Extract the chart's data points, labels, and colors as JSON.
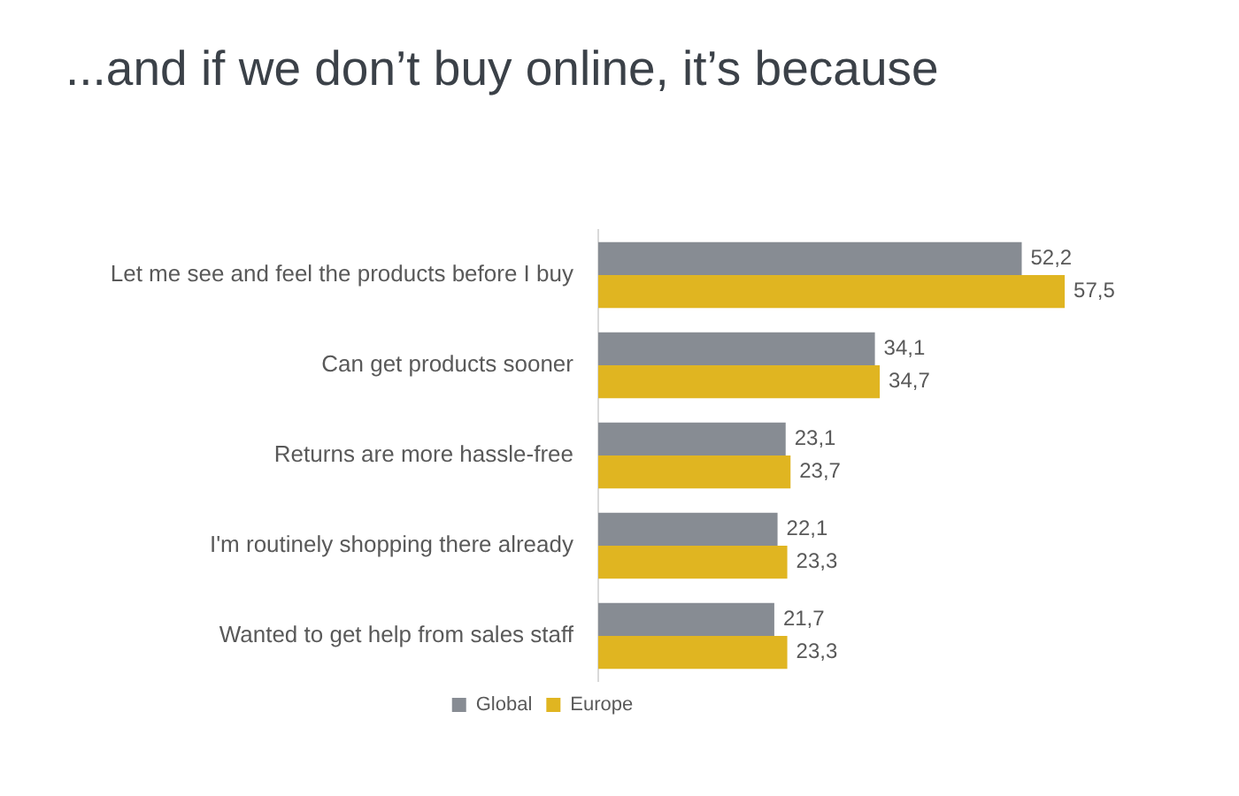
{
  "chart_data": {
    "type": "bar",
    "orientation": "horizontal",
    "title": "...and if we don’t buy online, it’s because",
    "categories": [
      "Let me see and feel the products before I buy",
      "Can get products sooner",
      "Returns are more hassle-free",
      "I'm routinely shopping there already",
      "Wanted to get help from sales staff"
    ],
    "series": [
      {
        "name": "Global",
        "color": "#878c93",
        "values": [
          52.2,
          34.1,
          23.1,
          22.1,
          21.7
        ],
        "value_labels": [
          "52,2",
          "34,1",
          "23,1",
          "22,1",
          "21,7"
        ]
      },
      {
        "name": "Europe",
        "color": "#e0b521",
        "values": [
          57.5,
          34.7,
          23.7,
          23.3,
          23.3
        ],
        "value_labels": [
          "57,5",
          "34,7",
          "23,7",
          "23,3",
          "23,3"
        ]
      }
    ],
    "tick_labels": "y",
    "legend": "bottom"
  }
}
